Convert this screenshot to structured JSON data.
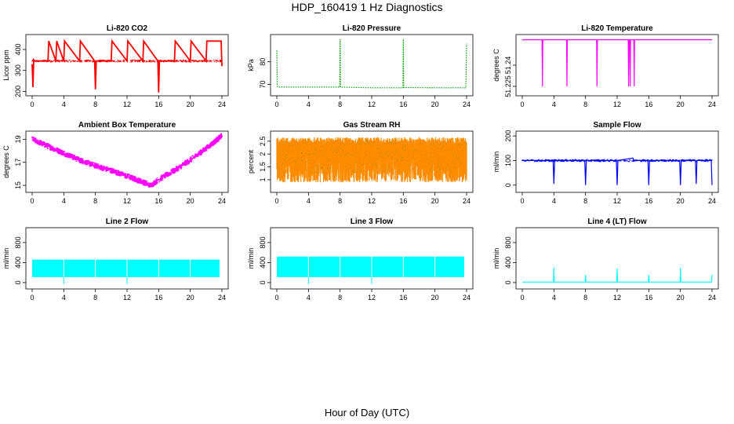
{
  "title": "HDP_160419  1 Hz Diagnostics",
  "x_caption": "Hour of Day (UTC)",
  "chart_data": [
    {
      "type": "line",
      "title": "Li-820 CO2",
      "ylabel": "Licor ppm",
      "color": "#ff0000",
      "xlim": [
        0,
        24
      ],
      "xticks": [
        0,
        4,
        8,
        12,
        16,
        20,
        24
      ],
      "ylim": [
        190,
        460
      ],
      "yticks": [
        200,
        300,
        400
      ],
      "x": [
        0,
        0.1,
        0.2,
        0.3,
        2,
        2.1,
        3,
        3.1,
        4,
        4.1,
        6,
        6.1,
        7.9,
        8,
        8.1,
        10,
        10.1,
        12,
        12.1,
        14,
        14.1,
        15.9,
        16,
        16.1,
        18,
        18.1,
        20,
        20.1,
        22,
        22.1,
        23.9,
        24
      ],
      "y": [
        330,
        220,
        350,
        345,
        345,
        440,
        345,
        440,
        345,
        440,
        345,
        440,
        345,
        210,
        345,
        345,
        440,
        345,
        440,
        345,
        440,
        345,
        195,
        345,
        345,
        440,
        345,
        440,
        345,
        440,
        440,
        320
      ]
    },
    {
      "type": "line",
      "title": "Li-820 Pressure",
      "ylabel": "kPa",
      "color": "#00a000",
      "xlim": [
        0,
        24
      ],
      "xticks": [
        0,
        4,
        8,
        12,
        16,
        20,
        24
      ],
      "ylim": [
        66,
        91
      ],
      "yticks": [
        70,
        80
      ],
      "x": [
        0,
        0.05,
        0.1,
        0.3,
        7.95,
        8,
        8.05,
        12,
        15.95,
        16,
        16.05,
        20,
        23.9,
        24
      ],
      "y": [
        85,
        70,
        69,
        68.8,
        68.8,
        90,
        68.8,
        68.5,
        68.5,
        90,
        68.6,
        68.5,
        68.5,
        88
      ]
    },
    {
      "type": "line",
      "title": "Li-820 Temperature",
      "ylabel": "degrees C",
      "color": "#ff00ff",
      "xlim": [
        0,
        24
      ],
      "xticks": [
        0,
        4,
        8,
        12,
        16,
        20,
        24
      ],
      "ylim": [
        51.22,
        51.26
      ],
      "yticks": [
        51.225,
        51.24
      ],
      "x": [
        0,
        2.5,
        2.55,
        2.6,
        5.6,
        5.65,
        5.7,
        9.4,
        9.45,
        9.5,
        13.4,
        13.45,
        13.5,
        13.6,
        13.65,
        13.7,
        14.1,
        14.15,
        14.2,
        24
      ],
      "y": [
        51.258,
        51.258,
        51.225,
        51.258,
        51.258,
        51.225,
        51.258,
        51.258,
        51.225,
        51.258,
        51.258,
        51.225,
        51.258,
        51.258,
        51.225,
        51.258,
        51.258,
        51.225,
        51.258,
        51.258
      ]
    },
    {
      "type": "line",
      "title": "Ambient Box Temperature",
      "ylabel": "degrees C",
      "color": "#ff00ff",
      "xlim": [
        0,
        24
      ],
      "xticks": [
        0,
        4,
        8,
        12,
        16,
        20,
        24
      ],
      "ylim": [
        14.6,
        19.5
      ],
      "yticks": [
        15,
        17,
        19
      ],
      "x": [
        0,
        2,
        4,
        6,
        8,
        10,
        12,
        14,
        15,
        16,
        18,
        20,
        22,
        24
      ],
      "y": [
        19,
        18.4,
        17.8,
        17.2,
        16.7,
        16.3,
        15.8,
        15.3,
        15.0,
        15.5,
        16.3,
        17.2,
        18.2,
        19.3
      ]
    },
    {
      "type": "line",
      "title": "Gas Stream RH",
      "ylabel": "percent",
      "color": "#ff8c00",
      "xlim": [
        0,
        24
      ],
      "xticks": [
        0,
        4,
        8,
        12,
        16,
        20,
        24
      ],
      "ylim": [
        0.6,
        2.8
      ],
      "yticks": [
        1.0,
        1.5,
        2.0,
        2.5
      ],
      "x": [
        0,
        24
      ],
      "y": [
        2.6,
        2.6
      ]
    },
    {
      "type": "line",
      "title": "Sample Flow",
      "ylabel": "ml/min",
      "color": "#0000ff",
      "xlim": [
        0,
        24
      ],
      "xticks": [
        0,
        4,
        8,
        12,
        16,
        20,
        24
      ],
      "ylim": [
        -20,
        210
      ],
      "yticks": [
        0,
        100,
        200
      ],
      "x": [
        0,
        3.9,
        4,
        4.1,
        7.9,
        8,
        8.1,
        11.9,
        12,
        12.1,
        14,
        14.1,
        15.9,
        16,
        16.1,
        19.9,
        20,
        20.1,
        21.9,
        22,
        22.1,
        23.9,
        24
      ],
      "y": [
        100,
        100,
        5,
        100,
        100,
        0,
        100,
        100,
        0,
        100,
        110,
        100,
        100,
        0,
        100,
        100,
        0,
        100,
        100,
        5,
        100,
        100,
        0
      ]
    },
    {
      "type": "line",
      "title": "Line 2 Flow",
      "ylabel": "ml/min",
      "color": "#00ffff",
      "xlim": [
        0,
        24
      ],
      "xticks": [
        0,
        4,
        8,
        12,
        16,
        20,
        24
      ],
      "ylim": [
        -80,
        1050
      ],
      "yticks": [
        0,
        400,
        800
      ],
      "x": [
        0,
        24
      ],
      "y": [
        460,
        460
      ]
    },
    {
      "type": "line",
      "title": "Line 3 Flow",
      "ylabel": "ml/min",
      "color": "#00ffff",
      "xlim": [
        0,
        24
      ],
      "xticks": [
        0,
        4,
        8,
        12,
        16,
        20,
        24
      ],
      "ylim": [
        -80,
        1050
      ],
      "yticks": [
        0,
        400,
        800
      ],
      "x": [
        0,
        24
      ],
      "y": [
        520,
        520
      ]
    },
    {
      "type": "line",
      "title": "Line 4 (LT) Flow",
      "ylabel": "ml/min",
      "color": "#00ffff",
      "xlim": [
        0,
        24
      ],
      "xticks": [
        0,
        4,
        8,
        12,
        16,
        20,
        24
      ],
      "ylim": [
        -80,
        1050
      ],
      "yticks": [
        0,
        400,
        800
      ],
      "x": [
        0,
        3.95,
        4,
        4.05,
        7.95,
        8,
        8.05,
        11.95,
        12,
        12.05,
        15.95,
        16,
        16.05,
        19.95,
        20,
        20.05,
        23.95,
        24
      ],
      "y": [
        10,
        10,
        300,
        10,
        10,
        150,
        10,
        10,
        280,
        10,
        10,
        150,
        10,
        10,
        290,
        10,
        10,
        150
      ]
    }
  ]
}
